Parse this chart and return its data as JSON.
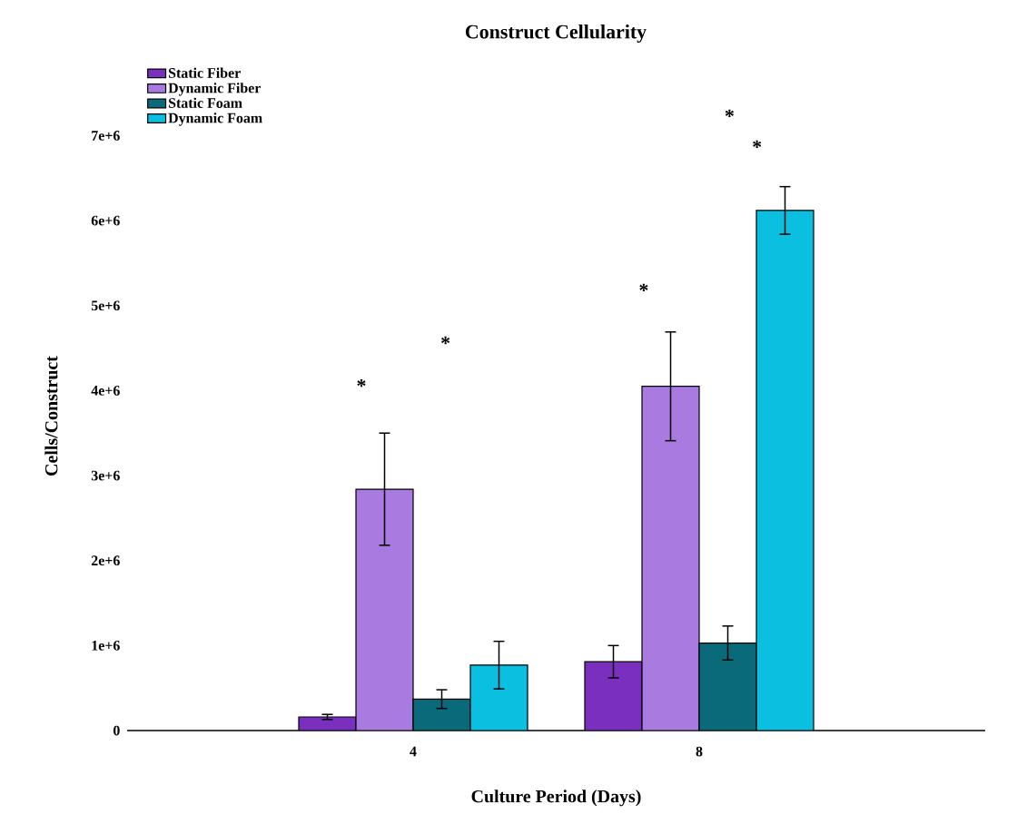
{
  "chart_data": {
    "type": "bar",
    "title": "Construct Cellularity",
    "xlabel": "Culture Period (Days)",
    "ylabel": "Cells/Construct",
    "xlim": [
      0,
      12
    ],
    "xticks": [
      4,
      8
    ],
    "ylim": [
      0,
      7400000
    ],
    "yticks": [
      0,
      {
        "value": 1000000,
        "label": "1e+6"
      },
      {
        "value": 2000000,
        "label": "2e+6"
      },
      {
        "value": 3000000,
        "label": "3e+6"
      },
      {
        "value": 4000000,
        "label": "4e+6"
      },
      {
        "value": 5000000,
        "label": "5e+6"
      },
      {
        "value": 6000000,
        "label": "6e+6"
      },
      {
        "value": 7000000,
        "label": "7e+6"
      }
    ],
    "x": [
      4,
      8
    ],
    "series": [
      {
        "name": "Static Fiber",
        "color": "#7b2fbf",
        "values": [
          160000,
          810000
        ],
        "errors": [
          30000,
          190000
        ]
      },
      {
        "name": "Dynamic Fiber",
        "color": "#a97ae0",
        "values": [
          2840000,
          4050000
        ],
        "errors": [
          660000,
          640000
        ]
      },
      {
        "name": "Static Foam",
        "color": "#0a6a7a",
        "values": [
          370000,
          1030000
        ],
        "errors": [
          110000,
          200000
        ]
      },
      {
        "name": "Dynamic Foam",
        "color": "#0bbfe0",
        "values": [
          770000,
          6120000
        ],
        "errors": [
          280000,
          280000
        ]
      }
    ],
    "legend": "top left",
    "annotations": [
      "*",
      "*",
      "*",
      "*",
      "*"
    ]
  }
}
